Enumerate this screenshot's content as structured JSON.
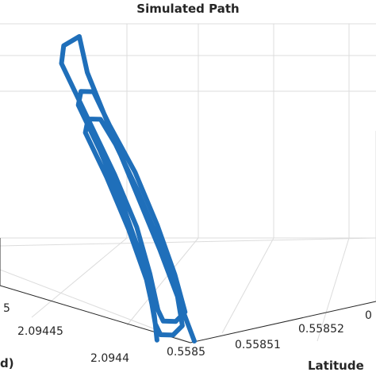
{
  "chart_data": {
    "type": "line3d",
    "title": "Simulated Path",
    "xlabel": "Latitude",
    "ylabel": "d)",
    "x_ticks": [
      "0.5585",
      "0.55851",
      "0.55852",
      "0"
    ],
    "y_ticks": [
      "5",
      "2.09445",
      "2.0944"
    ],
    "grid": true,
    "series": [
      {
        "color": "#1f6fba",
        "comment_points": "path in normalized plot-plane coordinates u (along latitude axis, 0..1) and v (along depth/longitude axis, 0..1)",
        "points": [
          [
            0.0,
            0.0
          ],
          [
            0.18,
            0.3
          ],
          [
            0.36,
            0.62
          ],
          [
            0.52,
            0.9
          ],
          [
            0.6,
            1.0
          ],
          [
            0.55,
            1.03
          ],
          [
            0.5,
            1.0
          ],
          [
            0.4,
            0.8
          ],
          [
            0.3,
            0.6
          ],
          [
            0.2,
            0.42
          ],
          [
            0.1,
            0.28
          ],
          [
            0.02,
            0.18
          ],
          [
            0.0,
            0.14
          ],
          [
            0.02,
            0.1
          ],
          [
            0.06,
            0.09
          ],
          [
            0.14,
            0.2
          ],
          [
            0.24,
            0.36
          ],
          [
            0.34,
            0.54
          ],
          [
            0.42,
            0.72
          ],
          [
            0.48,
            0.84
          ],
          [
            0.46,
            0.88
          ],
          [
            0.42,
            0.86
          ],
          [
            0.34,
            0.7
          ],
          [
            0.24,
            0.52
          ],
          [
            0.14,
            0.36
          ],
          [
            0.05,
            0.24
          ],
          [
            -0.02,
            0.16
          ],
          [
            -0.04,
            0.12
          ],
          [
            -0.02,
            0.08
          ],
          [
            0.02,
            0.07
          ],
          [
            0.1,
            0.16
          ],
          [
            0.2,
            0.32
          ],
          [
            0.3,
            0.5
          ],
          [
            0.38,
            0.66
          ],
          [
            0.42,
            0.76
          ],
          [
            0.4,
            0.8
          ],
          [
            0.36,
            0.78
          ],
          [
            0.28,
            0.62
          ],
          [
            0.18,
            0.44
          ],
          [
            0.08,
            0.28
          ],
          [
            0.0,
            0.18
          ],
          [
            -0.06,
            0.12
          ]
        ]
      }
    ]
  }
}
